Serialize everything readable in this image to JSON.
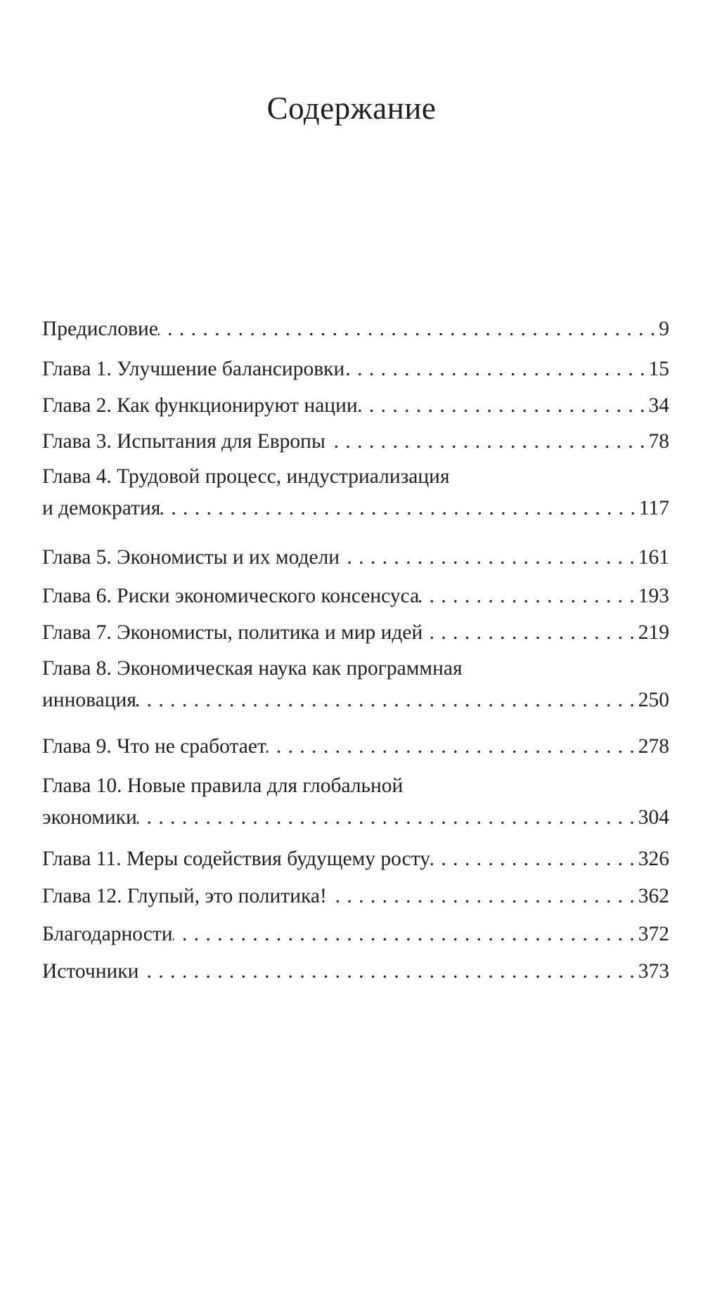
{
  "title": "Содержание",
  "entries": [
    {
      "lines": [
        "Предисловие"
      ],
      "page": "9"
    },
    {
      "lines": [
        "Глава 1. Улучшение балансировки"
      ],
      "page": "15"
    },
    {
      "lines": [
        "Глава 2. Как функционируют нации"
      ],
      "page": "34"
    },
    {
      "lines": [
        "Глава 3. Испытания для Европы"
      ],
      "page": "78"
    },
    {
      "lines": [
        "Глава 4. Трудовой процесс, индустриализация",
        "и демократия"
      ],
      "page": "117"
    },
    {
      "lines": [
        "Глава 5. Экономисты и их модели"
      ],
      "page": "161"
    },
    {
      "lines": [
        "Глава 6. Риски экономического консенсуса"
      ],
      "page": "193"
    },
    {
      "lines": [
        "Глава 7. Экономисты, политика и мир идей"
      ],
      "page": "219"
    },
    {
      "lines": [
        "Глава 8. Экономическая наука как программная",
        "инновация"
      ],
      "page": "250"
    },
    {
      "lines": [
        "Глава 9. Что не сработает"
      ],
      "page": "278"
    },
    {
      "lines": [
        "Глава 10. Новые правила для глобальной",
        "экономики"
      ],
      "page": "304"
    },
    {
      "lines": [
        "Глава 11. Меры содействия будущему росту"
      ],
      "page": "326"
    },
    {
      "lines": [
        "Глава 12. Глупый, это политика!"
      ],
      "page": "362"
    },
    {
      "lines": [
        "Благодарности"
      ],
      "page": "372"
    },
    {
      "lines": [
        "Источники"
      ],
      "page": "373"
    }
  ]
}
